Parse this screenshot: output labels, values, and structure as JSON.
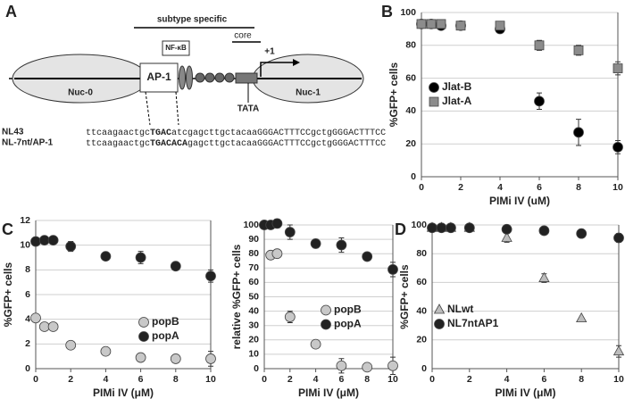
{
  "diagram": {
    "label": "A",
    "subtype": "subtype specific",
    "core": "core",
    "nfkb": "NF-κB",
    "ap1": "AP-1",
    "start": "+1",
    "nuc0": "Nuc-0",
    "nuc1": "Nuc-1",
    "tata": "TATA",
    "sequences": [
      {
        "name": "NL43",
        "pre": "ttcaagaactgc",
        "bold": "TGAC",
        "post": "atcgagcttgctacaaGGGACTTTCCgctgGGGACTTTCC"
      },
      {
        "name": "NL-7nt/AP-1",
        "pre": "ttcaagaactgc",
        "bold": "TGACACA",
        "post": "gagcttgctacaaGGGACTTTCCgctgGGGACTTTCC"
      }
    ]
  },
  "chart_data": [
    {
      "type": "scatter",
      "label": "B",
      "x_label": "PIMi IV (uM)",
      "y_label": "%GFP+ cells",
      "x": [
        0,
        0.5,
        1,
        2,
        4,
        6,
        8,
        10
      ],
      "xlim": [
        0,
        10
      ],
      "xticks": [
        0,
        2,
        4,
        6,
        8,
        10
      ],
      "ylim": [
        0,
        100
      ],
      "yticks": [
        0,
        20,
        40,
        60,
        80,
        100
      ],
      "grid": true,
      "legend": "center-left",
      "series": [
        {
          "name": "Jlat-B",
          "color": "#000000",
          "marker": "circle",
          "values": [
            93,
            93,
            92,
            92,
            90,
            46,
            27,
            18
          ],
          "errors": [
            null,
            null,
            null,
            null,
            null,
            5,
            8,
            4
          ]
        },
        {
          "name": "Jlat-A",
          "color": "#8c8c8c",
          "marker": "square",
          "values": [
            93,
            93,
            93,
            92,
            92,
            80,
            77,
            66
          ],
          "errors": [
            null,
            null,
            null,
            null,
            null,
            3,
            3,
            4
          ]
        }
      ]
    },
    {
      "type": "scatter",
      "label": "C",
      "x_label": "PIMi IV (μM)",
      "y_label": "%GFP+ cells",
      "x": [
        0,
        0.5,
        1,
        2,
        4,
        6,
        8,
        10
      ],
      "xlim": [
        0,
        10
      ],
      "xticks": [
        0,
        2,
        4,
        6,
        8,
        10
      ],
      "ylim": [
        0,
        12
      ],
      "yticks": [
        0,
        2,
        4,
        6,
        8,
        10,
        12
      ],
      "grid": true,
      "legend": "lower-right",
      "series": [
        {
          "name": "popB",
          "color": "#c8c8c8",
          "marker": "circle",
          "values": [
            4.1,
            3.4,
            3.4,
            1.9,
            1.4,
            0.9,
            0.8,
            0.8
          ],
          "errors": [
            null,
            null,
            null,
            0.3,
            null,
            0.3,
            null,
            0.6
          ]
        },
        {
          "name": "popA",
          "color": "#222222",
          "marker": "circle",
          "values": [
            10.3,
            10.4,
            10.4,
            9.9,
            9.1,
            9.0,
            8.3,
            7.5
          ],
          "errors": [
            null,
            null,
            0.3,
            0.4,
            null,
            0.5,
            null,
            0.5
          ]
        }
      ]
    },
    {
      "type": "scatter",
      "x_label": "PIMi IV (μM)",
      "y_label": "relative %GFP+ cells",
      "x": [
        0,
        0.5,
        1,
        2,
        4,
        6,
        8,
        10
      ],
      "xlim": [
        0,
        10
      ],
      "xticks": [
        0,
        2,
        4,
        6,
        8,
        10
      ],
      "ylim": [
        0,
        100
      ],
      "yticks": [
        0,
        10,
        20,
        30,
        40,
        50,
        60,
        70,
        80,
        90,
        100
      ],
      "grid": true,
      "legend": "center-right",
      "series": [
        {
          "name": "popB",
          "color": "#c8c8c8",
          "marker": "circle",
          "values": [
            100,
            79,
            80,
            36,
            17,
            2,
            1,
            2
          ],
          "errors": [
            null,
            null,
            null,
            4,
            null,
            5,
            null,
            6
          ]
        },
        {
          "name": "popA",
          "color": "#222222",
          "marker": "circle",
          "values": [
            100,
            100,
            101,
            95,
            87,
            86,
            78,
            69
          ],
          "errors": [
            null,
            null,
            3,
            5,
            3,
            5,
            null,
            5
          ]
        }
      ]
    },
    {
      "type": "scatter",
      "label": "D",
      "x_label": "PIMi IV (μM)",
      "y_label": "%GFP+ cells",
      "x": [
        0,
        0.5,
        1,
        2,
        4,
        6,
        8,
        10
      ],
      "xlim": [
        0,
        10
      ],
      "xticks": [
        0,
        2,
        4,
        6,
        8,
        10
      ],
      "ylim": [
        0,
        100
      ],
      "yticks": [
        0,
        20,
        40,
        60,
        80,
        100
      ],
      "grid": true,
      "legend": "lower-left",
      "series": [
        {
          "name": "NLwt",
          "color": "#bdbdbd",
          "marker": "triangle",
          "values": [
            98,
            98,
            98,
            98,
            91,
            63,
            35,
            12
          ],
          "errors": [
            null,
            null,
            null,
            null,
            3,
            3,
            null,
            4
          ]
        },
        {
          "name": "NL7ntAP1",
          "color": "#222222",
          "marker": "circle",
          "values": [
            98,
            98,
            98,
            98,
            97,
            96,
            94,
            91
          ],
          "errors": [
            null,
            null,
            null,
            null,
            null,
            null,
            null,
            3
          ]
        }
      ]
    }
  ]
}
